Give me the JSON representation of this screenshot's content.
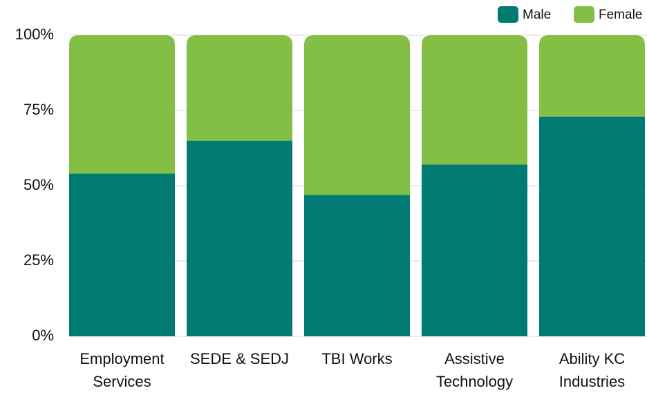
{
  "chart_data": {
    "type": "stacked_bar",
    "categories": [
      "Employment Services",
      "SEDE & SEDJ",
      "TBI Works",
      "Assistive Technology",
      "Ability KC Industries"
    ],
    "series": [
      {
        "name": "Male",
        "color": "#007a73",
        "values": [
          54,
          65,
          47,
          57,
          73
        ]
      },
      {
        "name": "Female",
        "color": "#84bf45",
        "values": [
          46,
          35,
          53,
          43,
          27
        ]
      }
    ],
    "ylim": [
      0,
      100
    ],
    "yticks": [
      {
        "value": 0,
        "label": "0%"
      },
      {
        "value": 25,
        "label": "25%"
      },
      {
        "value": 50,
        "label": "50%"
      },
      {
        "value": 75,
        "label": "75%"
      },
      {
        "value": 100,
        "label": "100%"
      }
    ],
    "grid": true,
    "legend": "top-right"
  }
}
